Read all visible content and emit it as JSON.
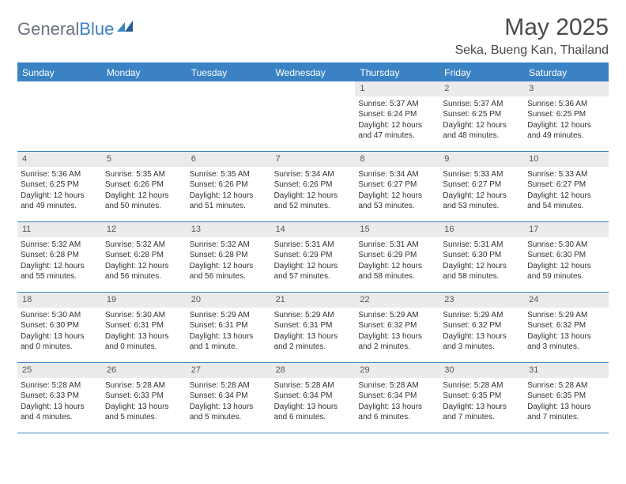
{
  "brand": {
    "name1": "General",
    "name2": "Blue"
  },
  "title": "May 2025",
  "location": "Seka, Bueng Kan, Thailand",
  "colors": {
    "accent": "#3b82c4",
    "header_text": "#ffffff",
    "daynum_bg": "#ebebeb",
    "text": "#333333",
    "title_text": "#4a4a4a"
  },
  "day_names": [
    "Sunday",
    "Monday",
    "Tuesday",
    "Wednesday",
    "Thursday",
    "Friday",
    "Saturday"
  ],
  "weeks": [
    [
      {
        "n": "",
        "empty": true
      },
      {
        "n": "",
        "empty": true
      },
      {
        "n": "",
        "empty": true
      },
      {
        "n": "",
        "empty": true
      },
      {
        "n": "1",
        "sr": "Sunrise: 5:37 AM",
        "ss": "Sunset: 6:24 PM",
        "d1": "Daylight: 12 hours",
        "d2": "and 47 minutes."
      },
      {
        "n": "2",
        "sr": "Sunrise: 5:37 AM",
        "ss": "Sunset: 6:25 PM",
        "d1": "Daylight: 12 hours",
        "d2": "and 48 minutes."
      },
      {
        "n": "3",
        "sr": "Sunrise: 5:36 AM",
        "ss": "Sunset: 6:25 PM",
        "d1": "Daylight: 12 hours",
        "d2": "and 49 minutes."
      }
    ],
    [
      {
        "n": "4",
        "sr": "Sunrise: 5:36 AM",
        "ss": "Sunset: 6:25 PM",
        "d1": "Daylight: 12 hours",
        "d2": "and 49 minutes."
      },
      {
        "n": "5",
        "sr": "Sunrise: 5:35 AM",
        "ss": "Sunset: 6:26 PM",
        "d1": "Daylight: 12 hours",
        "d2": "and 50 minutes."
      },
      {
        "n": "6",
        "sr": "Sunrise: 5:35 AM",
        "ss": "Sunset: 6:26 PM",
        "d1": "Daylight: 12 hours",
        "d2": "and 51 minutes."
      },
      {
        "n": "7",
        "sr": "Sunrise: 5:34 AM",
        "ss": "Sunset: 6:26 PM",
        "d1": "Daylight: 12 hours",
        "d2": "and 52 minutes."
      },
      {
        "n": "8",
        "sr": "Sunrise: 5:34 AM",
        "ss": "Sunset: 6:27 PM",
        "d1": "Daylight: 12 hours",
        "d2": "and 53 minutes."
      },
      {
        "n": "9",
        "sr": "Sunrise: 5:33 AM",
        "ss": "Sunset: 6:27 PM",
        "d1": "Daylight: 12 hours",
        "d2": "and 53 minutes."
      },
      {
        "n": "10",
        "sr": "Sunrise: 5:33 AM",
        "ss": "Sunset: 6:27 PM",
        "d1": "Daylight: 12 hours",
        "d2": "and 54 minutes."
      }
    ],
    [
      {
        "n": "11",
        "sr": "Sunrise: 5:32 AM",
        "ss": "Sunset: 6:28 PM",
        "d1": "Daylight: 12 hours",
        "d2": "and 55 minutes."
      },
      {
        "n": "12",
        "sr": "Sunrise: 5:32 AM",
        "ss": "Sunset: 6:28 PM",
        "d1": "Daylight: 12 hours",
        "d2": "and 56 minutes."
      },
      {
        "n": "13",
        "sr": "Sunrise: 5:32 AM",
        "ss": "Sunset: 6:28 PM",
        "d1": "Daylight: 12 hours",
        "d2": "and 56 minutes."
      },
      {
        "n": "14",
        "sr": "Sunrise: 5:31 AM",
        "ss": "Sunset: 6:29 PM",
        "d1": "Daylight: 12 hours",
        "d2": "and 57 minutes."
      },
      {
        "n": "15",
        "sr": "Sunrise: 5:31 AM",
        "ss": "Sunset: 6:29 PM",
        "d1": "Daylight: 12 hours",
        "d2": "and 58 minutes."
      },
      {
        "n": "16",
        "sr": "Sunrise: 5:31 AM",
        "ss": "Sunset: 6:30 PM",
        "d1": "Daylight: 12 hours",
        "d2": "and 58 minutes."
      },
      {
        "n": "17",
        "sr": "Sunrise: 5:30 AM",
        "ss": "Sunset: 6:30 PM",
        "d1": "Daylight: 12 hours",
        "d2": "and 59 minutes."
      }
    ],
    [
      {
        "n": "18",
        "sr": "Sunrise: 5:30 AM",
        "ss": "Sunset: 6:30 PM",
        "d1": "Daylight: 13 hours",
        "d2": "and 0 minutes."
      },
      {
        "n": "19",
        "sr": "Sunrise: 5:30 AM",
        "ss": "Sunset: 6:31 PM",
        "d1": "Daylight: 13 hours",
        "d2": "and 0 minutes."
      },
      {
        "n": "20",
        "sr": "Sunrise: 5:29 AM",
        "ss": "Sunset: 6:31 PM",
        "d1": "Daylight: 13 hours",
        "d2": "and 1 minute."
      },
      {
        "n": "21",
        "sr": "Sunrise: 5:29 AM",
        "ss": "Sunset: 6:31 PM",
        "d1": "Daylight: 13 hours",
        "d2": "and 2 minutes."
      },
      {
        "n": "22",
        "sr": "Sunrise: 5:29 AM",
        "ss": "Sunset: 6:32 PM",
        "d1": "Daylight: 13 hours",
        "d2": "and 2 minutes."
      },
      {
        "n": "23",
        "sr": "Sunrise: 5:29 AM",
        "ss": "Sunset: 6:32 PM",
        "d1": "Daylight: 13 hours",
        "d2": "and 3 minutes."
      },
      {
        "n": "24",
        "sr": "Sunrise: 5:29 AM",
        "ss": "Sunset: 6:32 PM",
        "d1": "Daylight: 13 hours",
        "d2": "and 3 minutes."
      }
    ],
    [
      {
        "n": "25",
        "sr": "Sunrise: 5:28 AM",
        "ss": "Sunset: 6:33 PM",
        "d1": "Daylight: 13 hours",
        "d2": "and 4 minutes."
      },
      {
        "n": "26",
        "sr": "Sunrise: 5:28 AM",
        "ss": "Sunset: 6:33 PM",
        "d1": "Daylight: 13 hours",
        "d2": "and 5 minutes."
      },
      {
        "n": "27",
        "sr": "Sunrise: 5:28 AM",
        "ss": "Sunset: 6:34 PM",
        "d1": "Daylight: 13 hours",
        "d2": "and 5 minutes."
      },
      {
        "n": "28",
        "sr": "Sunrise: 5:28 AM",
        "ss": "Sunset: 6:34 PM",
        "d1": "Daylight: 13 hours",
        "d2": "and 6 minutes."
      },
      {
        "n": "29",
        "sr": "Sunrise: 5:28 AM",
        "ss": "Sunset: 6:34 PM",
        "d1": "Daylight: 13 hours",
        "d2": "and 6 minutes."
      },
      {
        "n": "30",
        "sr": "Sunrise: 5:28 AM",
        "ss": "Sunset: 6:35 PM",
        "d1": "Daylight: 13 hours",
        "d2": "and 7 minutes."
      },
      {
        "n": "31",
        "sr": "Sunrise: 5:28 AM",
        "ss": "Sunset: 6:35 PM",
        "d1": "Daylight: 13 hours",
        "d2": "and 7 minutes."
      }
    ]
  ]
}
